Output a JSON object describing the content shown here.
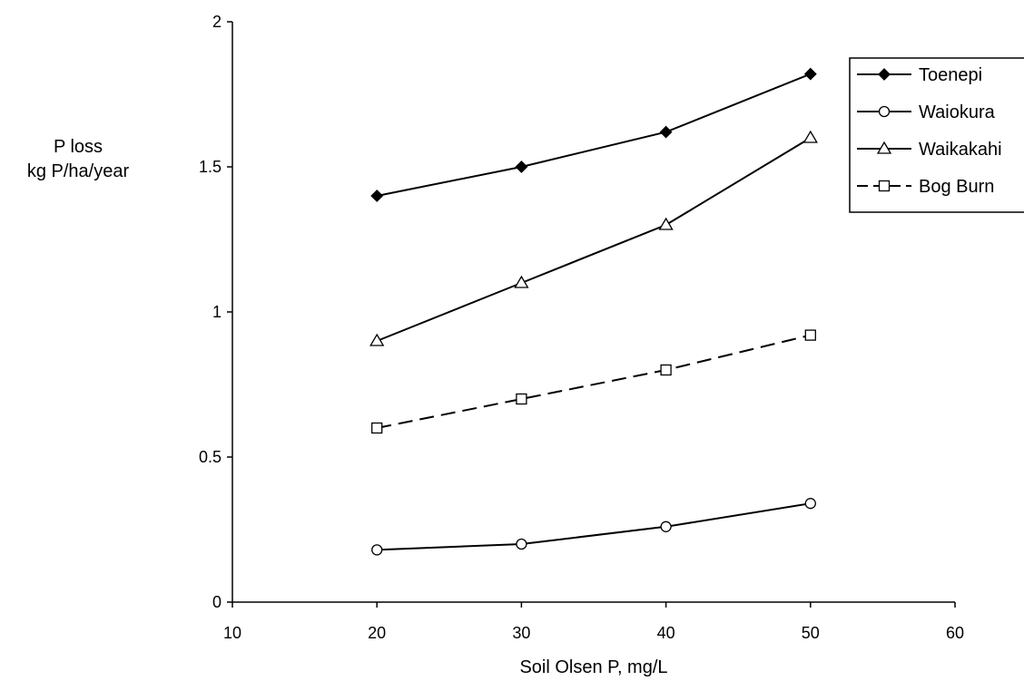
{
  "chart_data": {
    "type": "line",
    "title": "",
    "xlabel": "Soil Olsen P, mg/L",
    "ylabel_lines": [
      "P loss",
      "kg P/ha/year"
    ],
    "xlim": [
      10,
      60
    ],
    "ylim": [
      0,
      2
    ],
    "x_ticks": [
      10,
      20,
      30,
      40,
      50,
      60
    ],
    "x_tick_labels": [
      "10",
      "20",
      "30",
      "40",
      "50",
      "60"
    ],
    "y_ticks": [
      0,
      0.5,
      1,
      1.5,
      2
    ],
    "y_tick_labels": [
      "0",
      "0.5",
      "1",
      "1.5",
      "2"
    ],
    "grid": false,
    "legend_position": "top-right",
    "x": [
      20,
      30,
      40,
      50
    ],
    "series": [
      {
        "name": "Toenepi",
        "values": [
          1.4,
          1.5,
          1.62,
          1.82
        ],
        "marker": "diamond-filled",
        "line": "solid",
        "color": "#000000"
      },
      {
        "name": "Waiokura",
        "values": [
          0.18,
          0.2,
          0.26,
          0.34
        ],
        "marker": "circle-open",
        "line": "solid",
        "color": "#000000"
      },
      {
        "name": "Waikakahi",
        "values": [
          0.9,
          1.1,
          1.3,
          1.6
        ],
        "marker": "triangle-open",
        "line": "solid",
        "color": "#000000"
      },
      {
        "name": "Bog Burn",
        "values": [
          0.6,
          0.7,
          0.8,
          0.92
        ],
        "marker": "square-open",
        "line": "dashed",
        "color": "#000000"
      }
    ]
  }
}
